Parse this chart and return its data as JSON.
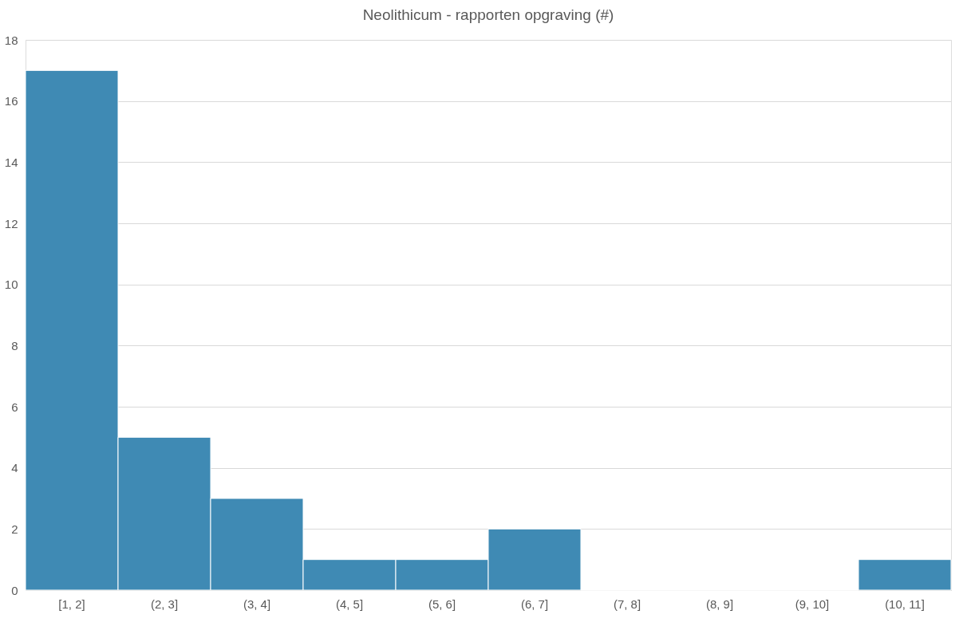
{
  "chart_data": {
    "type": "bar",
    "title": "Neolithicum - rapporten opgraving (#)",
    "categories": [
      "[1, 2]",
      "(2, 3]",
      "(3, 4]",
      "(4, 5]",
      "(5, 6]",
      "(6, 7]",
      "(7, 8]",
      "(8, 9]",
      "(9, 10]",
      "(10, 11]"
    ],
    "values": [
      17,
      5,
      3,
      1,
      1,
      2,
      0,
      0,
      0,
      1
    ],
    "color": "#3f8ab4",
    "ylim": [
      0,
      18
    ],
    "yticks": [
      0,
      2,
      4,
      6,
      8,
      10,
      12,
      14,
      16,
      18
    ],
    "grid": "y"
  }
}
